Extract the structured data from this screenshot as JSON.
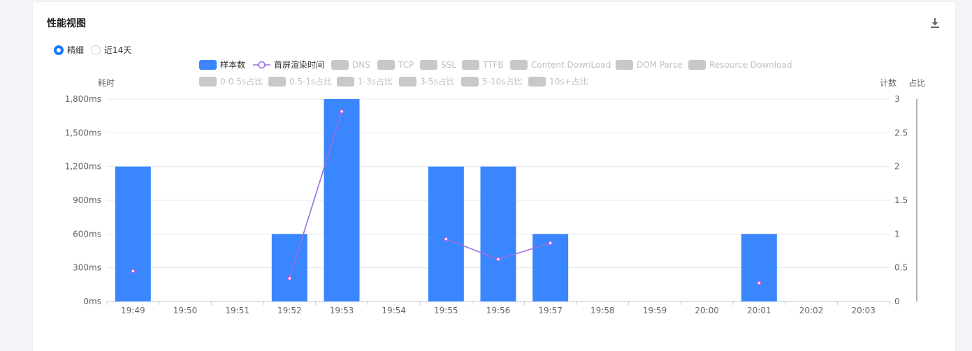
{
  "card": {
    "title": "性能视图",
    "download_icon": "download-icon"
  },
  "range": {
    "options": [
      {
        "label": "精细",
        "checked": true
      },
      {
        "label": "近14天",
        "checked": false
      }
    ]
  },
  "chart_data": {
    "type": "bar",
    "categories": [
      "19:49",
      "19:50",
      "19:51",
      "19:52",
      "19:53",
      "19:54",
      "19:55",
      "19:56",
      "19:57",
      "19:58",
      "19:59",
      "20:00",
      "20:01",
      "20:02",
      "20:03"
    ],
    "series": [
      {
        "name": "样本数",
        "type": "bar",
        "axis": "count",
        "color": "#3a86ff",
        "values": [
          2,
          0,
          0,
          1,
          3,
          0,
          2,
          2,
          1,
          0,
          0,
          0,
          1,
          0,
          0
        ]
      },
      {
        "name": "首屏渲染时间",
        "type": "line",
        "axis": "duration",
        "color": "#9b6fe0",
        "values": [
          270,
          null,
          null,
          205,
          1690,
          null,
          555,
          375,
          520,
          null,
          null,
          null,
          165,
          null,
          null
        ]
      }
    ],
    "inactive_legend": [
      "DNS",
      "TCP",
      "SSL",
      "TTFB",
      "Content DownLoad",
      "DOM Parse",
      "Resource Download",
      "0-0.5s占比",
      "0.5-1s占比",
      "1-3s占比",
      "3-5s占比",
      "5-10s占比",
      "10s+占比"
    ],
    "y_left": {
      "label": "耗时",
      "range": [
        0,
        1800
      ],
      "ticks": [
        "0ms",
        "300ms",
        "600ms",
        "900ms",
        "1,200ms",
        "1,500ms",
        "1,800ms"
      ]
    },
    "y_right": {
      "label": "计数",
      "range": [
        0,
        3
      ],
      "ticks": [
        "0",
        "0.5",
        "1",
        "1.5",
        "2",
        "2.5",
        "3"
      ]
    },
    "y_right2": {
      "label": "占比"
    },
    "grid": true,
    "legend_position": "top"
  }
}
